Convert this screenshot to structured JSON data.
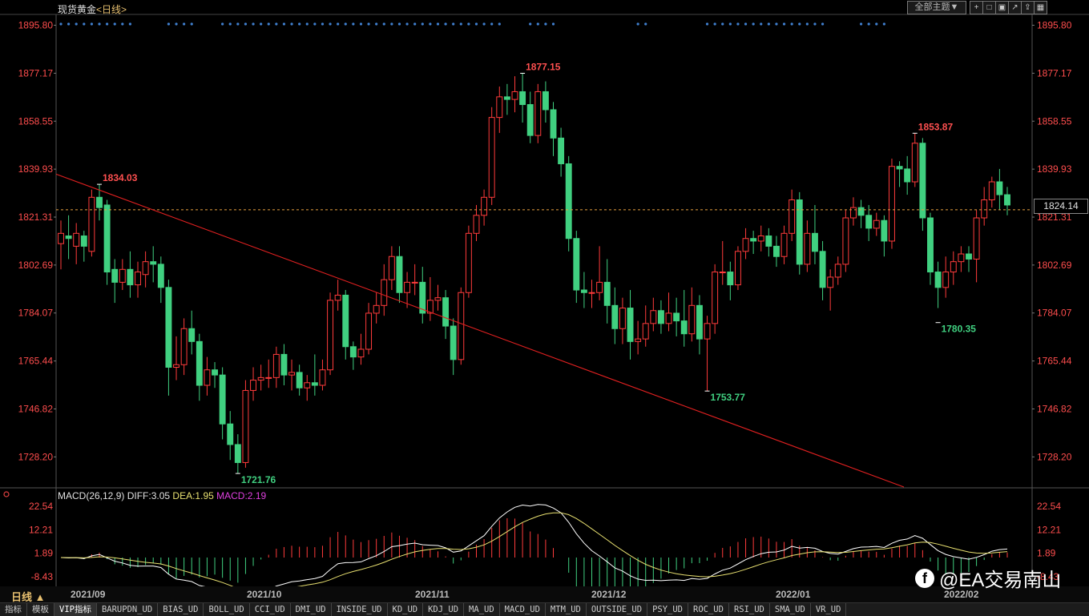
{
  "header": {
    "symbol": "现货黄金",
    "period_link": "<日线>",
    "theme_button": "全部主题▼",
    "toolbar_icons": [
      "add-icon",
      "square-icon",
      "image-icon",
      "arrow-icon",
      "share-icon",
      "grid-icon"
    ]
  },
  "chart_data": {
    "type": "candlestick",
    "y_axis_labels": [
      "1895.80",
      "1877.17",
      "1858.55",
      "1839.93",
      "1821.31",
      "1802.69",
      "1784.07",
      "1765.44",
      "1746.82",
      "1728.20"
    ],
    "ylim": [
      1716.5,
      1900
    ],
    "last_price": "1824.14",
    "last_price_value": 1824.14,
    "annotations": [
      {
        "label": "1834.03",
        "value": 1834.03,
        "kind": "high"
      },
      {
        "label": "1877.15",
        "value": 1877.15,
        "kind": "high"
      },
      {
        "label": "1853.87",
        "value": 1853.87,
        "kind": "high"
      },
      {
        "label": "1721.76",
        "value": 1721.76,
        "kind": "low"
      },
      {
        "label": "1753.77",
        "value": 1753.77,
        "kind": "low"
      },
      {
        "label": "1780.35",
        "value": 1780.35,
        "kind": "low"
      }
    ],
    "x_labels": [
      "2021/09",
      "2021/10",
      "2021/11",
      "2021/12",
      "2022/01",
      "2022/02"
    ],
    "candles": [
      [
        1811,
        1815,
        1801,
        1820
      ],
      [
        1814,
        1813,
        1805,
        1822
      ],
      [
        1810,
        1815,
        1803,
        1819
      ],
      [
        1814,
        1810,
        1804,
        1816
      ],
      [
        1808,
        1829,
        1806,
        1832
      ],
      [
        1829,
        1825,
        1820,
        1834.03
      ],
      [
        1826,
        1800,
        1795,
        1828
      ],
      [
        1801,
        1796,
        1788,
        1805
      ],
      [
        1796,
        1801,
        1793,
        1805
      ],
      [
        1801,
        1795,
        1790,
        1808
      ],
      [
        1795,
        1800,
        1790,
        1804
      ],
      [
        1799,
        1804,
        1794,
        1808
      ],
      [
        1804,
        1803,
        1796,
        1810
      ],
      [
        1803,
        1794,
        1788,
        1806
      ],
      [
        1794,
        1763,
        1752,
        1797
      ],
      [
        1763,
        1764,
        1758,
        1775
      ],
      [
        1764,
        1778,
        1760,
        1782
      ],
      [
        1778,
        1773,
        1768,
        1785
      ],
      [
        1773,
        1756,
        1750,
        1776
      ],
      [
        1756,
        1762,
        1752,
        1767
      ],
      [
        1762,
        1760,
        1755,
        1765
      ],
      [
        1760,
        1741,
        1735,
        1763
      ],
      [
        1741,
        1733,
        1727,
        1746
      ],
      [
        1733,
        1726,
        1721.76,
        1737
      ],
      [
        1726,
        1754,
        1724,
        1758
      ],
      [
        1754,
        1758,
        1750,
        1763
      ],
      [
        1758,
        1759,
        1754,
        1764
      ],
      [
        1759,
        1759,
        1755,
        1766
      ],
      [
        1759,
        1768,
        1755,
        1771
      ],
      [
        1768,
        1760,
        1756,
        1772
      ],
      [
        1760,
        1761,
        1754,
        1766
      ],
      [
        1761,
        1755,
        1752,
        1764
      ],
      [
        1755,
        1757,
        1750,
        1760
      ],
      [
        1757,
        1756,
        1752,
        1768
      ],
      [
        1756,
        1762,
        1754,
        1766
      ],
      [
        1762,
        1789,
        1760,
        1792
      ],
      [
        1789,
        1791,
        1785,
        1797
      ],
      [
        1791,
        1771,
        1766,
        1793
      ],
      [
        1771,
        1767,
        1762,
        1773
      ],
      [
        1767,
        1770,
        1764,
        1776
      ],
      [
        1770,
        1784,
        1768,
        1788
      ],
      [
        1784,
        1787,
        1780,
        1792
      ],
      [
        1787,
        1797,
        1783,
        1803
      ],
      [
        1797,
        1806,
        1793,
        1810
      ],
      [
        1806,
        1792,
        1788,
        1810
      ],
      [
        1792,
        1796,
        1786,
        1800
      ],
      [
        1796,
        1796,
        1791,
        1803
      ],
      [
        1796,
        1784,
        1780,
        1802
      ],
      [
        1784,
        1789,
        1781,
        1798
      ],
      [
        1789,
        1790,
        1785,
        1795
      ],
      [
        1790,
        1779,
        1774,
        1793
      ],
      [
        1779,
        1766,
        1760,
        1782
      ],
      [
        1766,
        1792,
        1764,
        1794
      ],
      [
        1792,
        1815,
        1790,
        1818
      ],
      [
        1815,
        1822,
        1812,
        1826
      ],
      [
        1822,
        1829,
        1818,
        1832
      ],
      [
        1829,
        1860,
        1826,
        1864
      ],
      [
        1860,
        1868,
        1854,
        1872
      ],
      [
        1868,
        1867,
        1861,
        1873
      ],
      [
        1867,
        1870,
        1862,
        1876
      ],
      [
        1870,
        1865,
        1858,
        1877.15
      ],
      [
        1865,
        1853,
        1850,
        1870
      ],
      [
        1853,
        1870,
        1850,
        1873
      ],
      [
        1870,
        1863,
        1858,
        1874
      ],
      [
        1863,
        1852,
        1845,
        1866
      ],
      [
        1852,
        1842,
        1837,
        1856
      ],
      [
        1842,
        1813,
        1808,
        1845
      ],
      [
        1813,
        1793,
        1788,
        1816
      ],
      [
        1793,
        1792,
        1786,
        1800
      ],
      [
        1792,
        1792,
        1786,
        1797
      ],
      [
        1792,
        1796,
        1789,
        1810
      ],
      [
        1796,
        1787,
        1780,
        1805
      ],
      [
        1787,
        1778,
        1772,
        1794
      ],
      [
        1778,
        1786,
        1772,
        1790
      ],
      [
        1786,
        1773,
        1766,
        1793
      ],
      [
        1773,
        1774,
        1768,
        1781
      ],
      [
        1774,
        1780,
        1771,
        1787
      ],
      [
        1780,
        1785,
        1777,
        1790
      ],
      [
        1785,
        1780,
        1776,
        1789
      ],
      [
        1780,
        1784,
        1777,
        1792
      ],
      [
        1784,
        1781,
        1775,
        1790
      ],
      [
        1781,
        1776,
        1771,
        1793
      ],
      [
        1776,
        1787,
        1773,
        1794
      ],
      [
        1787,
        1774,
        1768,
        1791
      ],
      [
        1774,
        1780,
        1753.77,
        1783
      ],
      [
        1780,
        1800,
        1776,
        1803
      ],
      [
        1800,
        1800,
        1795,
        1812
      ],
      [
        1800,
        1795,
        1789,
        1804
      ],
      [
        1795,
        1808,
        1793,
        1810
      ],
      [
        1808,
        1813,
        1805,
        1817
      ],
      [
        1813,
        1812,
        1807,
        1816
      ],
      [
        1812,
        1814,
        1808,
        1818
      ],
      [
        1814,
        1810,
        1806,
        1817
      ],
      [
        1810,
        1806,
        1802,
        1814
      ],
      [
        1806,
        1815,
        1803,
        1818
      ],
      [
        1815,
        1828,
        1812,
        1832
      ],
      [
        1828,
        1803,
        1799,
        1831
      ],
      [
        1803,
        1815,
        1800,
        1820
      ],
      [
        1815,
        1808,
        1803,
        1826
      ],
      [
        1808,
        1794,
        1789,
        1812
      ],
      [
        1794,
        1798,
        1785,
        1801
      ],
      [
        1798,
        1803,
        1795,
        1806
      ],
      [
        1803,
        1821,
        1800,
        1824
      ],
      [
        1821,
        1825,
        1818,
        1829
      ],
      [
        1825,
        1822,
        1817,
        1828
      ],
      [
        1822,
        1817,
        1812,
        1826
      ],
      [
        1817,
        1820,
        1814,
        1823
      ],
      [
        1820,
        1812,
        1806,
        1822
      ],
      [
        1812,
        1841,
        1809,
        1844
      ],
      [
        1841,
        1840,
        1833,
        1843
      ],
      [
        1840,
        1835,
        1830,
        1845
      ],
      [
        1835,
        1850,
        1833,
        1853.87
      ],
      [
        1850,
        1821,
        1816,
        1852
      ],
      [
        1821,
        1800,
        1795,
        1823
      ],
      [
        1800,
        1794,
        1786,
        1804
      ],
      [
        1794,
        1800,
        1790,
        1806
      ],
      [
        1800,
        1804,
        1795,
        1808
      ],
      [
        1804,
        1807,
        1800,
        1810
      ],
      [
        1807,
        1805,
        1800,
        1810
      ],
      [
        1805,
        1821,
        1796,
        1824
      ],
      [
        1821,
        1828,
        1818,
        1833
      ],
      [
        1828,
        1835,
        1825,
        1837
      ],
      [
        1835,
        1830,
        1824,
        1840
      ],
      [
        1830,
        1826,
        1822,
        1833
      ]
    ]
  },
  "macd": {
    "label_name": "MACD(26,12,9)",
    "diff_label": "DIFF:3.05",
    "dea_label": "DEA:1.95",
    "macd_label": "MACD:2.19",
    "axis_labels": [
      "22.54",
      "12.21",
      "1.89",
      "-8.43"
    ]
  },
  "footer": {
    "period": "日线 ▲",
    "tabs": [
      "指标",
      "模板",
      "VIP指标",
      "BARUPDN_UD",
      "BIAS_UD",
      "BOLL_UD",
      "CCI_UD",
      "DMI_UD",
      "INSIDE_UD",
      "KD_UD",
      "KDJ_UD",
      "MA_UD",
      "MACD_UD",
      "MTM_UD",
      "OUTSIDE_UD",
      "PSY_UD",
      "ROC_UD",
      "RSI_UD",
      "SMA_UD",
      "VR_UD"
    ],
    "active_tab": "VIP指标"
  },
  "watermark": {
    "logo": "f",
    "text": "@EA交易南山"
  },
  "colors": {
    "up": "#ff3b3b",
    "down": "#40d080",
    "axis_text": "#ff4d4d",
    "grid_dash": "#e8a040",
    "trendline": "#e02020",
    "dots": "#4080d0",
    "diff_line": "#ffffff",
    "dea_line": "#e8e070"
  }
}
